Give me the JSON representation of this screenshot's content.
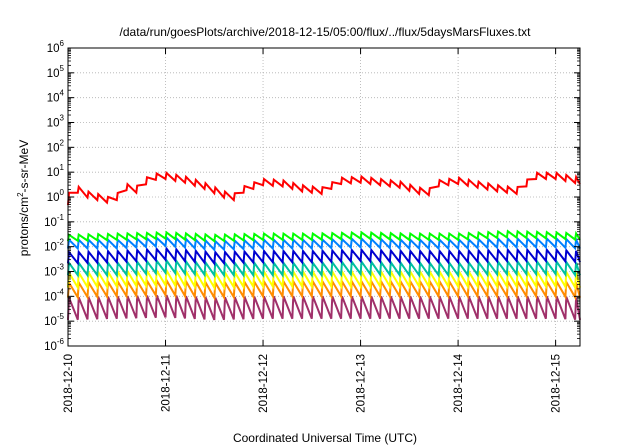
{
  "chart_data": {
    "type": "line",
    "title": "/data/run/goesPlots/archive/2018-12-15/05:00/flux/../flux/5daysMarsFluxes.txt",
    "xlabel": "Coordinated Universal Time (UTC)",
    "ylabel_parts": [
      "protons/cm",
      "2",
      "-s-sr-MeV"
    ],
    "yscale": "log",
    "ylim": [
      -6,
      6
    ],
    "yticks": [
      {
        "base": "10",
        "exp": "-6"
      },
      {
        "base": "10",
        "exp": "-5"
      },
      {
        "base": "10",
        "exp": "-4"
      },
      {
        "base": "10",
        "exp": "-3"
      },
      {
        "base": "10",
        "exp": "-2"
      },
      {
        "base": "10",
        "exp": "-1"
      },
      {
        "base": "10",
        "exp": "0"
      },
      {
        "base": "10",
        "exp": "1"
      },
      {
        "base": "10",
        "exp": "2"
      },
      {
        "base": "10",
        "exp": "3"
      },
      {
        "base": "10",
        "exp": "4"
      },
      {
        "base": "10",
        "exp": "5"
      },
      {
        "base": "10",
        "exp": "6"
      }
    ],
    "xlim": [
      "2018-12-10T00:00",
      "2018-12-15T06:00"
    ],
    "xticks": [
      "2018-12-10",
      "2018-12-11",
      "2018-12-12",
      "2018-12-13",
      "2018-12-14",
      "2018-12-15"
    ],
    "grid": true,
    "legend": "none",
    "series": [
      {
        "color": "#ff0000",
        "log10_points": [
          [
            0.0,
            -0.2
          ],
          [
            0.02,
            0.3
          ],
          [
            0.1,
            0.3
          ],
          [
            0.2,
            0.1
          ],
          [
            0.3,
            0.0
          ],
          [
            0.4,
            -0.1
          ],
          [
            0.45,
            -0.2
          ],
          [
            0.6,
            0.4
          ],
          [
            0.7,
            0.3
          ],
          [
            0.85,
            0.8
          ],
          [
            1.0,
            0.85
          ],
          [
            1.2,
            0.7
          ],
          [
            1.4,
            0.45
          ],
          [
            1.6,
            0.1
          ],
          [
            1.7,
            0.0
          ],
          [
            1.8,
            0.3
          ],
          [
            2.0,
            0.6
          ],
          [
            2.2,
            0.55
          ],
          [
            2.4,
            0.35
          ],
          [
            2.6,
            0.25
          ],
          [
            2.8,
            0.65
          ],
          [
            3.0,
            0.7
          ],
          [
            3.2,
            0.6
          ],
          [
            3.4,
            0.5
          ],
          [
            3.6,
            0.25
          ],
          [
            3.7,
            0.2
          ],
          [
            3.8,
            0.55
          ],
          [
            4.0,
            0.65
          ],
          [
            4.2,
            0.5
          ],
          [
            4.4,
            0.35
          ],
          [
            4.6,
            0.25
          ],
          [
            4.8,
            0.85
          ],
          [
            5.0,
            0.85
          ],
          [
            5.25,
            0.65
          ]
        ],
        "sawtooth": {
          "period_days": 0.1,
          "spike_dex": 0.25
        }
      },
      {
        "color": "#00ff00",
        "log10_points": [
          [
            0.0,
            -1.65
          ],
          [
            0.5,
            -1.6
          ],
          [
            1.0,
            -1.55
          ],
          [
            1.5,
            -1.65
          ],
          [
            2.0,
            -1.6
          ],
          [
            2.5,
            -1.6
          ],
          [
            3.0,
            -1.55
          ],
          [
            3.5,
            -1.6
          ],
          [
            4.0,
            -1.6
          ],
          [
            4.5,
            -1.5
          ],
          [
            5.0,
            -1.55
          ],
          [
            5.25,
            -1.6
          ]
        ],
        "sawtooth": {
          "period_days": 0.1,
          "spike_dex": 0.25
        }
      },
      {
        "color": "#0080ff",
        "log10_points": [
          [
            0.0,
            -1.9
          ],
          [
            0.5,
            -1.9
          ],
          [
            1.0,
            -1.8
          ],
          [
            1.5,
            -1.95
          ],
          [
            2.0,
            -1.9
          ],
          [
            2.5,
            -1.9
          ],
          [
            3.0,
            -1.85
          ],
          [
            3.5,
            -1.9
          ],
          [
            4.0,
            -1.9
          ],
          [
            4.5,
            -1.85
          ],
          [
            5.0,
            -1.85
          ],
          [
            5.25,
            -1.9
          ]
        ],
        "sawtooth": {
          "period_days": 0.1,
          "spike_dex": 0.35
        }
      },
      {
        "color": "#0000d0",
        "log10_points": [
          [
            0.0,
            -2.45
          ],
          [
            0.5,
            -2.4
          ],
          [
            1.0,
            -2.3
          ],
          [
            1.5,
            -2.45
          ],
          [
            2.0,
            -2.4
          ],
          [
            2.5,
            -2.4
          ],
          [
            3.0,
            -2.35
          ],
          [
            3.5,
            -2.4
          ],
          [
            4.0,
            -2.4
          ],
          [
            4.5,
            -2.35
          ],
          [
            5.0,
            -2.35
          ],
          [
            5.25,
            -2.4
          ]
        ],
        "sawtooth": {
          "period_days": 0.1,
          "spike_dex": 0.45
        }
      },
      {
        "color": "#00c0a0",
        "log10_points": [
          [
            0.0,
            -2.9
          ],
          [
            0.5,
            -2.9
          ],
          [
            1.0,
            -2.8
          ],
          [
            1.5,
            -2.9
          ],
          [
            2.0,
            -2.9
          ],
          [
            2.5,
            -2.9
          ],
          [
            3.0,
            -2.85
          ],
          [
            3.5,
            -2.9
          ],
          [
            4.0,
            -2.9
          ],
          [
            4.5,
            -2.85
          ],
          [
            5.0,
            -2.85
          ],
          [
            5.25,
            -2.9
          ]
        ],
        "sawtooth": {
          "period_days": 0.1,
          "spike_dex": 0.5
        }
      },
      {
        "color": "#ffff00",
        "log10_points": [
          [
            0.0,
            -3.35
          ],
          [
            0.5,
            -3.3
          ],
          [
            1.0,
            -3.25
          ],
          [
            1.5,
            -3.35
          ],
          [
            2.0,
            -3.3
          ],
          [
            2.5,
            -3.3
          ],
          [
            3.0,
            -3.3
          ],
          [
            3.5,
            -3.3
          ],
          [
            4.0,
            -3.3
          ],
          [
            4.5,
            -3.3
          ],
          [
            5.0,
            -3.3
          ],
          [
            5.25,
            -3.35
          ]
        ],
        "sawtooth": {
          "period_days": 0.1,
          "spike_dex": 0.6
        }
      },
      {
        "color": "#ff8c00",
        "log10_points": [
          [
            0.0,
            -3.75
          ],
          [
            0.5,
            -3.7
          ],
          [
            1.0,
            -3.65
          ],
          [
            1.5,
            -3.75
          ],
          [
            2.0,
            -3.7
          ],
          [
            2.5,
            -3.7
          ],
          [
            3.0,
            -3.7
          ],
          [
            3.5,
            -3.7
          ],
          [
            4.0,
            -3.7
          ],
          [
            4.5,
            -3.7
          ],
          [
            5.0,
            -3.7
          ],
          [
            5.25,
            -3.75
          ]
        ],
        "sawtooth": {
          "period_days": 0.1,
          "spike_dex": 0.6
        }
      },
      {
        "color": "#a0306a",
        "log10_points": [
          [
            0.0,
            -4.5
          ],
          [
            0.5,
            -4.45
          ],
          [
            1.0,
            -4.4
          ],
          [
            1.5,
            -4.5
          ],
          [
            2.0,
            -4.45
          ],
          [
            2.5,
            -4.45
          ],
          [
            3.0,
            -4.45
          ],
          [
            3.5,
            -4.45
          ],
          [
            4.0,
            -4.45
          ],
          [
            4.5,
            -4.45
          ],
          [
            5.0,
            -4.45
          ],
          [
            5.25,
            -4.5
          ]
        ],
        "sawtooth": {
          "period_days": 0.1,
          "spike_dex": 0.9
        }
      }
    ]
  }
}
